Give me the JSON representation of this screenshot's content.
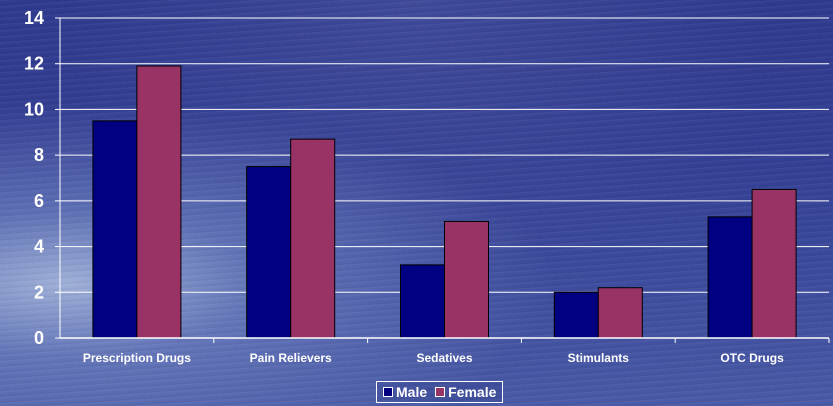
{
  "chart_data": {
    "type": "bar",
    "categories": [
      "Prescription Drugs",
      "Pain Relievers",
      "Sedatives",
      "Stimulants",
      "OTC Drugs"
    ],
    "series": [
      {
        "name": "Male",
        "values": [
          9.5,
          7.5,
          3.2,
          2.0,
          5.3
        ],
        "color": "#000080"
      },
      {
        "name": "Female",
        "values": [
          11.9,
          8.7,
          5.1,
          2.2,
          6.5
        ],
        "color": "#993366"
      }
    ],
    "yticks": [
      "0",
      "2",
      "4",
      "6",
      "8",
      "10",
      "12",
      "14"
    ],
    "ylim": [
      0,
      14
    ],
    "grid": true,
    "legend": "bottom"
  }
}
